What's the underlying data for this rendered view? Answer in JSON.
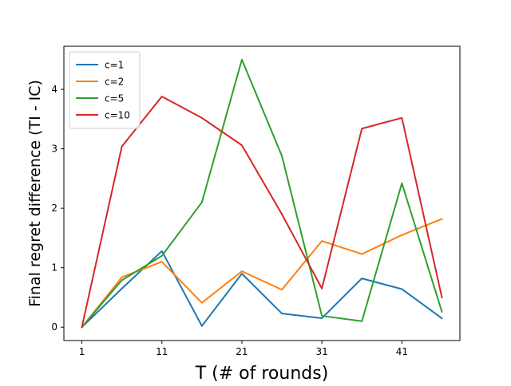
{
  "chart_data": {
    "type": "line",
    "title": "",
    "xlabel": "T (# of rounds)",
    "ylabel": "Final regret difference (TI - IC)",
    "x": [
      1,
      6,
      11,
      16,
      21,
      26,
      31,
      36,
      41,
      46
    ],
    "xlim": [
      -1.25,
      48.25
    ],
    "ylim": [
      -0.225,
      4.725
    ],
    "xticks": [
      1,
      11,
      21,
      31,
      41
    ],
    "xtick_labels": [
      "1",
      "11",
      "21",
      "31",
      "41"
    ],
    "yticks": [
      0,
      1,
      2,
      3,
      4
    ],
    "ytick_labels": [
      "0",
      "1",
      "2",
      "3",
      "4"
    ],
    "grid": false,
    "legend_position": "top-left",
    "series": [
      {
        "name": "c=1",
        "color": "#1f77b4",
        "values": [
          0.0,
          0.65,
          1.28,
          0.02,
          0.9,
          0.23,
          0.15,
          0.82,
          0.64,
          0.15
        ]
      },
      {
        "name": "c=2",
        "color": "#ff7f0e",
        "values": [
          0.0,
          0.84,
          1.1,
          0.41,
          0.94,
          0.63,
          1.45,
          1.23,
          1.55,
          1.82
        ]
      },
      {
        "name": "c=5",
        "color": "#2ca02c",
        "values": [
          0.0,
          0.79,
          1.2,
          2.1,
          4.5,
          2.88,
          0.19,
          0.1,
          2.42,
          0.26
        ]
      },
      {
        "name": "c=10",
        "color": "#d62728",
        "values": [
          0.0,
          3.04,
          3.88,
          3.52,
          3.06,
          1.9,
          0.65,
          3.34,
          3.52,
          0.5
        ]
      }
    ]
  }
}
